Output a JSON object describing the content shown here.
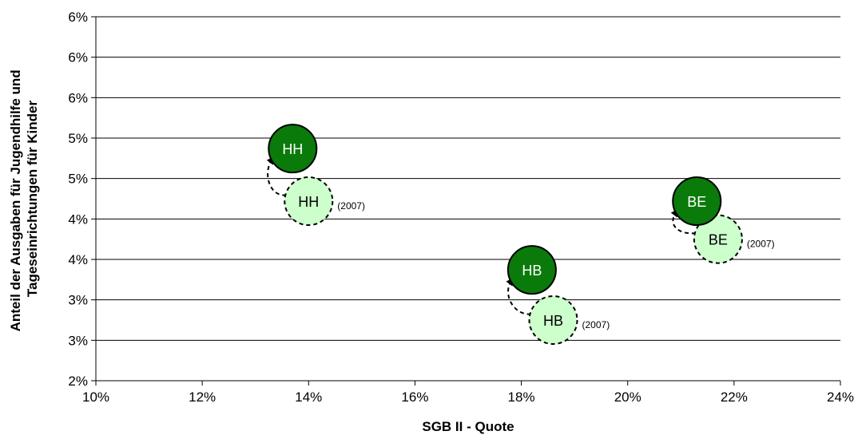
{
  "chart_data": {
    "type": "scatter",
    "xlabel": "SGB II - Quote",
    "ylabel": [
      "Anteil der Ausgaben für Jugendhilfe und",
      "Tageseinrichtungen für Kinder"
    ],
    "xlim": [
      0.1,
      0.24
    ],
    "ylim": [
      0.02,
      0.065
    ],
    "x_ticks": [
      {
        "value": 0.1,
        "label": "10%"
      },
      {
        "value": 0.12,
        "label": "12%"
      },
      {
        "value": 0.14,
        "label": "14%"
      },
      {
        "value": 0.16,
        "label": "16%"
      },
      {
        "value": 0.18,
        "label": "18%"
      },
      {
        "value": 0.2,
        "label": "20%"
      },
      {
        "value": 0.22,
        "label": "22%"
      },
      {
        "value": 0.24,
        "label": "24%"
      }
    ],
    "y_ticks": [
      {
        "value": 0.02,
        "label": "2%"
      },
      {
        "value": 0.025,
        "label": "3%"
      },
      {
        "value": 0.03,
        "label": "3%"
      },
      {
        "value": 0.035,
        "label": "4%"
      },
      {
        "value": 0.04,
        "label": "4%"
      },
      {
        "value": 0.045,
        "label": "5%"
      },
      {
        "value": 0.05,
        "label": "5%"
      },
      {
        "value": 0.055,
        "label": "6%"
      },
      {
        "value": 0.06,
        "label": "6%"
      },
      {
        "value": 0.065,
        "label": "6%"
      }
    ],
    "grid": "horizontal",
    "colors": {
      "current": "#0a7a0a",
      "previous": "#ccffcc",
      "current_text": "#ffffff",
      "previous_text": "#000000"
    },
    "points": [
      {
        "label": "HH",
        "x": 0.137,
        "y": 0.0487,
        "prev": {
          "x": 0.14,
          "y": 0.0422,
          "note": "(2007)"
        }
      },
      {
        "label": "HB",
        "x": 0.182,
        "y": 0.0337,
        "prev": {
          "x": 0.186,
          "y": 0.0275,
          "note": "(2007)"
        }
      },
      {
        "label": "BE",
        "x": 0.213,
        "y": 0.0422,
        "prev": {
          "x": 0.217,
          "y": 0.0375,
          "note": "(2007)"
        }
      }
    ]
  }
}
